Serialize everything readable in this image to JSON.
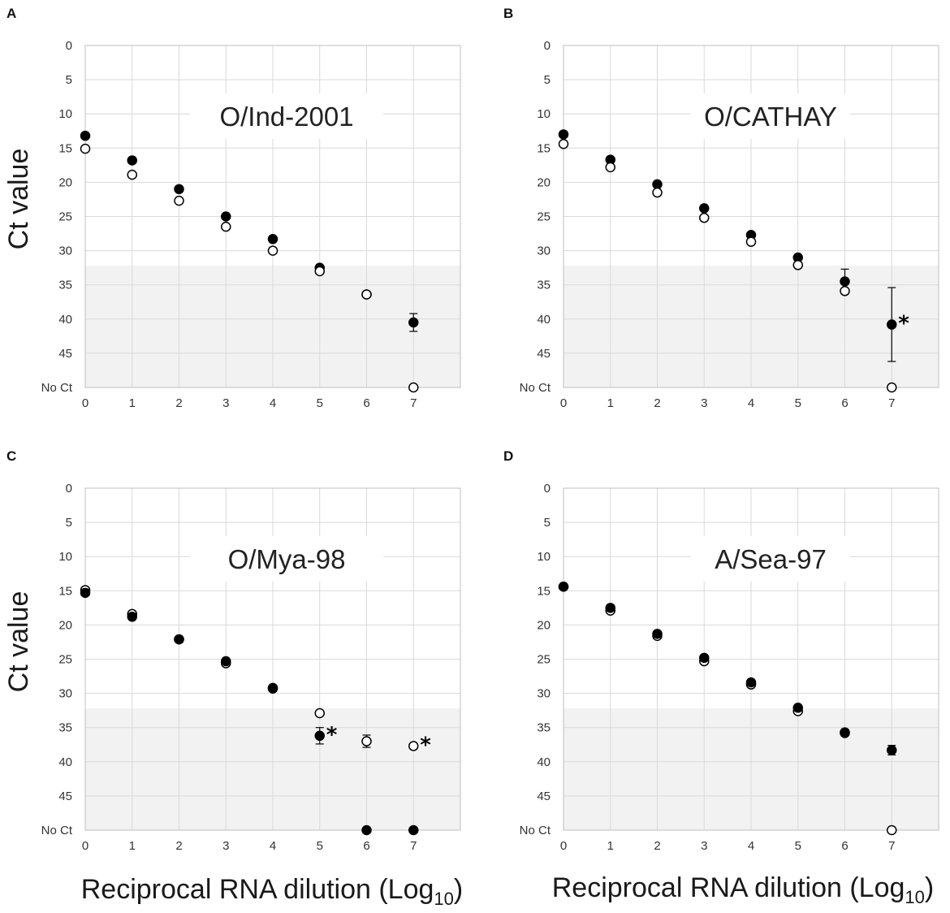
{
  "x_axis_title": "Reciprocal RNA dilution (Log",
  "x_axis_title_sub": "10",
  "x_axis_title_close": ")",
  "y_axis_title": "Ct value",
  "colors": {
    "band": "#f2f2f2",
    "grid": "#d9d9d9",
    "marker": "#000000"
  },
  "chart_data": [
    {
      "type": "scatter",
      "panel": "A",
      "title": "O/Ind-2001",
      "xlabel": "Reciprocal RNA dilution (Log10)",
      "ylabel": "Ct value",
      "xlim": [
        0,
        8
      ],
      "ylim": [
        0,
        50
      ],
      "y_inverted": true,
      "x_ticks": [
        "0",
        "1",
        "2",
        "3",
        "4",
        "5",
        "6",
        "7"
      ],
      "y_ticks": [
        "0",
        "5",
        "10",
        "15",
        "20",
        "25",
        "30",
        "35",
        "40",
        "45",
        "No Ct"
      ],
      "shaded_region": [
        32.2,
        50
      ],
      "series": [
        {
          "name": "filled",
          "marker": "filled",
          "points": [
            {
              "x": 0,
              "y": 13.2
            },
            {
              "x": 1,
              "y": 16.8
            },
            {
              "x": 2,
              "y": 21.0
            },
            {
              "x": 3,
              "y": 25.0
            },
            {
              "x": 4,
              "y": 28.3
            },
            {
              "x": 5,
              "y": 32.5
            },
            {
              "x": 6,
              "y": 36.4
            },
            {
              "x": 7,
              "y": 40.5,
              "err": 1.3
            }
          ]
        },
        {
          "name": "open",
          "marker": "open",
          "points": [
            {
              "x": 0,
              "y": 15.1
            },
            {
              "x": 1,
              "y": 18.9
            },
            {
              "x": 2,
              "y": 22.7
            },
            {
              "x": 3,
              "y": 26.5
            },
            {
              "x": 4,
              "y": 30.0
            },
            {
              "x": 5,
              "y": 33.0
            },
            {
              "x": 6,
              "y": 36.4
            },
            {
              "x": 7,
              "y": 50
            }
          ]
        }
      ],
      "annotations": []
    },
    {
      "type": "scatter",
      "panel": "B",
      "title": "O/CATHAY",
      "xlabel": "Reciprocal RNA dilution (Log10)",
      "ylabel": "Ct value",
      "xlim": [
        0,
        8
      ],
      "ylim": [
        0,
        50
      ],
      "y_inverted": true,
      "x_ticks": [
        "0",
        "1",
        "2",
        "3",
        "4",
        "5",
        "6",
        "7"
      ],
      "y_ticks": [
        "0",
        "5",
        "10",
        "15",
        "20",
        "25",
        "30",
        "35",
        "40",
        "45",
        "No Ct"
      ],
      "shaded_region": [
        32.2,
        50
      ],
      "series": [
        {
          "name": "filled",
          "marker": "filled",
          "points": [
            {
              "x": 0,
              "y": 13.0
            },
            {
              "x": 1,
              "y": 16.7
            },
            {
              "x": 2,
              "y": 20.3
            },
            {
              "x": 3,
              "y": 23.8
            },
            {
              "x": 4,
              "y": 27.7
            },
            {
              "x": 5,
              "y": 31.0
            },
            {
              "x": 6,
              "y": 34.5,
              "err": 1.8
            },
            {
              "x": 7,
              "y": 40.8,
              "err": 5.4
            }
          ]
        },
        {
          "name": "open",
          "marker": "open",
          "points": [
            {
              "x": 0,
              "y": 14.4
            },
            {
              "x": 1,
              "y": 17.8
            },
            {
              "x": 2,
              "y": 21.5
            },
            {
              "x": 3,
              "y": 25.2
            },
            {
              "x": 4,
              "y": 28.7
            },
            {
              "x": 5,
              "y": 32.1
            },
            {
              "x": 6,
              "y": 35.9
            },
            {
              "x": 7,
              "y": 50
            }
          ]
        }
      ],
      "annotations": [
        {
          "text": "*",
          "x": 7,
          "y": 40.8
        }
      ]
    },
    {
      "type": "scatter",
      "panel": "C",
      "title": "O/Mya-98",
      "xlabel": "Reciprocal RNA dilution (Log10)",
      "ylabel": "Ct value",
      "xlim": [
        0,
        8
      ],
      "ylim": [
        0,
        50
      ],
      "y_inverted": true,
      "x_ticks": [
        "0",
        "1",
        "2",
        "3",
        "4",
        "5",
        "6",
        "7"
      ],
      "y_ticks": [
        "0",
        "5",
        "10",
        "15",
        "20",
        "25",
        "30",
        "35",
        "40",
        "45",
        "No Ct"
      ],
      "shaded_region": [
        32.2,
        50
      ],
      "series": [
        {
          "name": "open",
          "marker": "open",
          "points": [
            {
              "x": 0,
              "y": 14.9
            },
            {
              "x": 1,
              "y": 18.4
            },
            {
              "x": 2,
              "y": 22.1
            },
            {
              "x": 3,
              "y": 25.6
            },
            {
              "x": 4,
              "y": 29.2
            },
            {
              "x": 5,
              "y": 32.9
            },
            {
              "x": 6,
              "y": 37.0,
              "err": 0.9
            },
            {
              "x": 7,
              "y": 37.7
            }
          ]
        },
        {
          "name": "filled",
          "marker": "filled",
          "points": [
            {
              "x": 0,
              "y": 15.3
            },
            {
              "x": 1,
              "y": 18.8
            },
            {
              "x": 2,
              "y": 22.1
            },
            {
              "x": 3,
              "y": 25.3
            },
            {
              "x": 4,
              "y": 29.3
            },
            {
              "x": 5,
              "y": 36.2,
              "err": 1.2
            },
            {
              "x": 6,
              "y": 50
            },
            {
              "x": 7,
              "y": 50
            }
          ]
        }
      ],
      "annotations": [
        {
          "text": "*",
          "x": 5,
          "y": 36.2
        },
        {
          "text": "*",
          "x": 7,
          "y": 37.7
        }
      ]
    },
    {
      "type": "scatter",
      "panel": "D",
      "title": "A/Sea-97",
      "xlabel": "Reciprocal RNA dilution (Log10)",
      "ylabel": "Ct value",
      "xlim": [
        0,
        8
      ],
      "ylim": [
        0,
        50
      ],
      "y_inverted": true,
      "x_ticks": [
        "0",
        "1",
        "2",
        "3",
        "4",
        "5",
        "6",
        "7"
      ],
      "y_ticks": [
        "0",
        "5",
        "10",
        "15",
        "20",
        "25",
        "30",
        "35",
        "40",
        "45",
        "No Ct"
      ],
      "shaded_region": [
        32.2,
        50
      ],
      "series": [
        {
          "name": "open",
          "marker": "open",
          "points": [
            {
              "x": 0,
              "y": 14.4
            },
            {
              "x": 1,
              "y": 17.9
            },
            {
              "x": 2,
              "y": 21.6
            },
            {
              "x": 3,
              "y": 25.3
            },
            {
              "x": 4,
              "y": 28.7
            },
            {
              "x": 5,
              "y": 32.6
            },
            {
              "x": 6,
              "y": 35.8
            },
            {
              "x": 7,
              "y": 50
            }
          ]
        },
        {
          "name": "filled",
          "marker": "filled",
          "points": [
            {
              "x": 0,
              "y": 14.4
            },
            {
              "x": 1,
              "y": 17.5
            },
            {
              "x": 2,
              "y": 21.3
            },
            {
              "x": 3,
              "y": 24.8
            },
            {
              "x": 4,
              "y": 28.4
            },
            {
              "x": 5,
              "y": 32.1
            },
            {
              "x": 6,
              "y": 35.7
            },
            {
              "x": 7,
              "y": 38.3,
              "err": 0.7
            }
          ]
        }
      ],
      "annotations": []
    }
  ]
}
